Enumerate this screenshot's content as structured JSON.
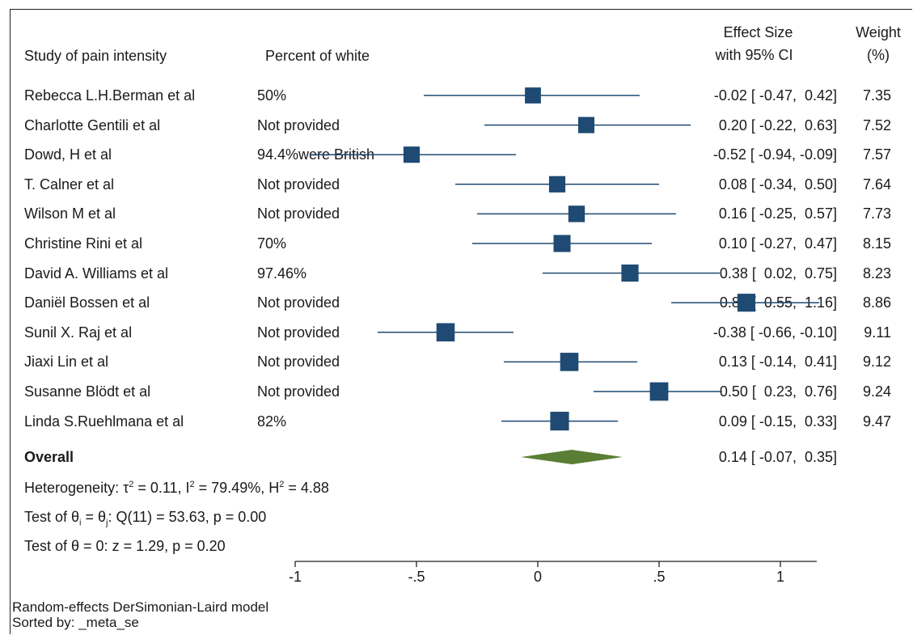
{
  "headers": {
    "study": "Study of pain intensity",
    "percent": "Percent of white",
    "effect_line1": "Effect Size",
    "effect_line2": "with 95% CI",
    "weight_line1": "Weight",
    "weight_line2": "(%)"
  },
  "overall": {
    "label": "Overall",
    "ci_text": "0.14 [ -0.07,  0.35]"
  },
  "stats": {
    "heterogeneity_prefix": "Heterogeneity: τ",
    "heterogeneity_mid1": " = 0.11, I",
    "heterogeneity_mid2": " = 79.49%, H",
    "heterogeneity_end": " = 4.88",
    "sup2": "2",
    "theta_prefix": "Test of θ",
    "theta_sub_i": "i",
    "theta_mid": " = θ",
    "theta_sub_j": "j",
    "theta_end": ": Q(11) = 53.63, p = 0.00",
    "test_zero": "Test of θ = 0: z = 1.29, p = 0.20"
  },
  "footer": {
    "model": "Random-effects DerSimonian-Laird model",
    "sorted": "Sorted by: _meta_se"
  },
  "colors": {
    "marker": "#1f4a73",
    "diamond": "#5a7f34",
    "line": "#1f4a73"
  },
  "chart_data": {
    "type": "scatter",
    "subtype": "forest-plot",
    "xlim": [
      -1,
      1.15
    ],
    "x_ticks": [
      -1,
      -0.5,
      0,
      0.5,
      1
    ],
    "x_tick_labels": [
      "-1",
      "-.5",
      "0",
      ".5",
      "1"
    ],
    "studies": [
      {
        "name": "Rebecca L.H.Berman et al",
        "percent_white": "50%",
        "es": -0.02,
        "lo": -0.47,
        "hi": 0.42,
        "weight": 7.35,
        "ci_text": "-0.02 [ -0.47,  0.42]",
        "weight_text": "7.35"
      },
      {
        "name": "Charlotte Gentili et al",
        "percent_white": "Not provided",
        "es": 0.2,
        "lo": -0.22,
        "hi": 0.63,
        "weight": 7.52,
        "ci_text": "0.20 [ -0.22,  0.63]",
        "weight_text": "7.52"
      },
      {
        "name": "Dowd, H et al",
        "percent_white": "94.4%were British",
        "es": -0.52,
        "lo": -0.94,
        "hi": -0.09,
        "weight": 7.57,
        "ci_text": "-0.52 [ -0.94, -0.09]",
        "weight_text": "7.57"
      },
      {
        "name": "T. Calner et al",
        "percent_white": "Not provided",
        "es": 0.08,
        "lo": -0.34,
        "hi": 0.5,
        "weight": 7.64,
        "ci_text": "0.08 [ -0.34,  0.50]",
        "weight_text": "7.64"
      },
      {
        "name": "Wilson M et al",
        "percent_white": "Not provided",
        "es": 0.16,
        "lo": -0.25,
        "hi": 0.57,
        "weight": 7.73,
        "ci_text": "0.16 [ -0.25,  0.57]",
        "weight_text": "7.73"
      },
      {
        "name": "Christine Rini et al",
        "percent_white": "70%",
        "es": 0.1,
        "lo": -0.27,
        "hi": 0.47,
        "weight": 8.15,
        "ci_text": "0.10 [ -0.27,  0.47]",
        "weight_text": "8.15"
      },
      {
        "name": "David A. Williams et al",
        "percent_white": "97.46%",
        "es": 0.38,
        "lo": 0.02,
        "hi": 0.75,
        "weight": 8.23,
        "ci_text": "0.38 [  0.02,  0.75]",
        "weight_text": "8.23"
      },
      {
        "name": "Daniël Bossen et al",
        "percent_white": "Not provided",
        "es": 0.86,
        "lo": 0.55,
        "hi": 1.16,
        "weight": 8.86,
        "ci_text": "0.86 [  0.55,  1.16]",
        "weight_text": "8.86"
      },
      {
        "name": "Sunil X. Raj et al",
        "percent_white": "Not provided",
        "es": -0.38,
        "lo": -0.66,
        "hi": -0.1,
        "weight": 9.11,
        "ci_text": "-0.38 [ -0.66, -0.10]",
        "weight_text": "9.11"
      },
      {
        "name": "Jiaxi Lin et al",
        "percent_white": "Not provided",
        "es": 0.13,
        "lo": -0.14,
        "hi": 0.41,
        "weight": 9.12,
        "ci_text": "0.13 [ -0.14,  0.41]",
        "weight_text": "9.12"
      },
      {
        "name": "Susanne Blödt et al",
        "percent_white": "Not provided",
        "es": 0.5,
        "lo": 0.23,
        "hi": 0.76,
        "weight": 9.24,
        "ci_text": "0.50 [  0.23,  0.76]",
        "weight_text": "9.24"
      },
      {
        "name": "Linda S.Ruehlmana et al",
        "percent_white": "82%",
        "es": 0.09,
        "lo": -0.15,
        "hi": 0.33,
        "weight": 9.47,
        "ci_text": "0.09 [ -0.15,  0.33]",
        "weight_text": "9.47"
      }
    ],
    "overall": {
      "es": 0.14,
      "lo": -0.07,
      "hi": 0.35
    }
  }
}
